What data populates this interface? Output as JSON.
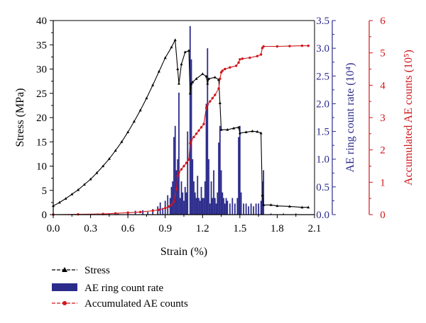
{
  "chart_data": {
    "type": "line",
    "xlabel": "Strain (%)",
    "x_ticks": [
      "0.0",
      "0.3",
      "0.6",
      "0.9",
      "1.2",
      "1.5",
      "1.8",
      "2.1"
    ],
    "xlim": [
      0,
      2.1
    ],
    "axes": {
      "stress": {
        "label": "Stress (MPa)",
        "range": [
          0,
          40
        ],
        "ticks": [
          "0",
          "5",
          "10",
          "15",
          "20",
          "25",
          "30",
          "35",
          "40"
        ],
        "color": "#000000"
      },
      "ae_rate": {
        "label": "AE ring count rate (10⁴)",
        "range": [
          0,
          3.5
        ],
        "ticks": [
          "0.0",
          "0.5",
          "1.0",
          "1.5",
          "2.0",
          "2.5",
          "3.0",
          "3.5"
        ],
        "color": "#2b2b8c"
      },
      "ae_accum": {
        "label": "Accumulated AE counts (10⁵)",
        "range": [
          0,
          6
        ],
        "ticks": [
          "0",
          "1",
          "2",
          "3",
          "4",
          "5",
          "6"
        ],
        "color": "#d0161c"
      }
    },
    "series": [
      {
        "name": "Stress",
        "kind": "line",
        "axis": "stress",
        "marker": "triangle",
        "color": "#000000",
        "points": [
          [
            0.0,
            1.8
          ],
          [
            0.05,
            2.5
          ],
          [
            0.1,
            3.3
          ],
          [
            0.15,
            4.2
          ],
          [
            0.2,
            5.1
          ],
          [
            0.25,
            6.2
          ],
          [
            0.3,
            7.3
          ],
          [
            0.35,
            8.6
          ],
          [
            0.4,
            10.0
          ],
          [
            0.45,
            11.5
          ],
          [
            0.5,
            13.2
          ],
          [
            0.55,
            15.0
          ],
          [
            0.6,
            17.0
          ],
          [
            0.65,
            19.2
          ],
          [
            0.7,
            21.5
          ],
          [
            0.75,
            24.0
          ],
          [
            0.8,
            26.7
          ],
          [
            0.85,
            29.5
          ],
          [
            0.9,
            32.3
          ],
          [
            0.95,
            34.5
          ],
          [
            0.98,
            36.0
          ],
          [
            1.0,
            30.0
          ],
          [
            1.01,
            27.0
          ],
          [
            1.03,
            31.0
          ],
          [
            1.06,
            33.5
          ],
          [
            1.09,
            33.8
          ],
          [
            1.1,
            25.0
          ],
          [
            1.11,
            27.0
          ],
          [
            1.12,
            27.3
          ],
          [
            1.15,
            28.0
          ],
          [
            1.2,
            29.0
          ],
          [
            1.23,
            28.5
          ],
          [
            1.24,
            27.0
          ],
          [
            1.25,
            28.0
          ],
          [
            1.3,
            28.3
          ],
          [
            1.33,
            27.8
          ],
          [
            1.34,
            23.0
          ],
          [
            1.35,
            17.5
          ],
          [
            1.4,
            17.5
          ],
          [
            1.45,
            17.8
          ],
          [
            1.49,
            18.0
          ],
          [
            1.5,
            16.8
          ],
          [
            1.55,
            17.0
          ],
          [
            1.6,
            17.2
          ],
          [
            1.64,
            17.1
          ],
          [
            1.67,
            16.8
          ],
          [
            1.68,
            4.0
          ],
          [
            1.69,
            2.0
          ],
          [
            1.75,
            2.0
          ],
          [
            1.8,
            1.8
          ],
          [
            1.9,
            1.7
          ],
          [
            2.0,
            1.5
          ],
          [
            2.05,
            1.5
          ]
        ]
      },
      {
        "name": "AE ring count rate",
        "kind": "bar",
        "axis": "ae_rate",
        "color": "#2b2b8c",
        "points": [
          [
            0.36,
            0.02
          ],
          [
            0.45,
            0.02
          ],
          [
            0.52,
            0.03
          ],
          [
            0.6,
            0.05
          ],
          [
            0.66,
            0.07
          ],
          [
            0.72,
            0.08
          ],
          [
            0.76,
            0.05
          ],
          [
            0.8,
            0.1
          ],
          [
            0.84,
            0.15
          ],
          [
            0.86,
            0.22
          ],
          [
            0.88,
            0.12
          ],
          [
            0.9,
            0.25
          ],
          [
            0.92,
            0.35
          ],
          [
            0.94,
            0.3
          ],
          [
            0.95,
            0.5
          ],
          [
            0.96,
            0.6
          ],
          [
            0.97,
            1.4
          ],
          [
            0.98,
            1.6
          ],
          [
            0.99,
            0.8
          ],
          [
            1.0,
            1.0
          ],
          [
            1.01,
            2.2
          ],
          [
            1.02,
            0.3
          ],
          [
            1.03,
            0.6
          ],
          [
            1.04,
            0.4
          ],
          [
            1.05,
            0.25
          ],
          [
            1.06,
            0.5
          ],
          [
            1.07,
            0.4
          ],
          [
            1.08,
            1.5
          ],
          [
            1.1,
            3.4
          ],
          [
            1.11,
            2.8
          ],
          [
            1.12,
            1.0
          ],
          [
            1.13,
            0.6
          ],
          [
            1.14,
            0.4
          ],
          [
            1.15,
            0.3
          ],
          [
            1.16,
            0.7
          ],
          [
            1.17,
            0.3
          ],
          [
            1.18,
            0.25
          ],
          [
            1.19,
            0.5
          ],
          [
            1.2,
            0.3
          ],
          [
            1.21,
            0.3
          ],
          [
            1.22,
            0.6
          ],
          [
            1.23,
            2.0
          ],
          [
            1.24,
            3.0
          ],
          [
            1.25,
            1.0
          ],
          [
            1.26,
            0.2
          ],
          [
            1.27,
            0.6
          ],
          [
            1.28,
            0.3
          ],
          [
            1.29,
            0.8
          ],
          [
            1.3,
            0.3
          ],
          [
            1.31,
            0.2
          ],
          [
            1.32,
            0.4
          ],
          [
            1.33,
            1.3
          ],
          [
            1.34,
            1.6
          ],
          [
            1.35,
            0.8
          ],
          [
            1.36,
            0.4
          ],
          [
            1.37,
            0.3
          ],
          [
            1.38,
            0.2
          ],
          [
            1.39,
            0.3
          ],
          [
            1.4,
            0.25
          ],
          [
            1.42,
            0.2
          ],
          [
            1.44,
            0.3
          ],
          [
            1.46,
            0.2
          ],
          [
            1.48,
            0.3
          ],
          [
            1.49,
            1.4
          ],
          [
            1.5,
            1.6
          ],
          [
            1.51,
            0.4
          ],
          [
            1.53,
            0.2
          ],
          [
            1.55,
            0.2
          ],
          [
            1.57,
            0.15
          ],
          [
            1.59,
            0.2
          ],
          [
            1.61,
            0.15
          ],
          [
            1.63,
            0.2
          ],
          [
            1.65,
            0.2
          ],
          [
            1.67,
            0.25
          ],
          [
            1.68,
            0.6
          ],
          [
            1.69,
            0.8
          ],
          [
            1.75,
            0.02
          ],
          [
            1.85,
            0.02
          ],
          [
            1.95,
            0.02
          ]
        ]
      },
      {
        "name": "Accumulated AE counts",
        "kind": "line",
        "axis": "ae_accum",
        "marker": "circle",
        "color": "#d0161c",
        "points": [
          [
            0.0,
            0.0
          ],
          [
            0.2,
            0.01
          ],
          [
            0.4,
            0.02
          ],
          [
            0.5,
            0.04
          ],
          [
            0.6,
            0.06
          ],
          [
            0.7,
            0.08
          ],
          [
            0.8,
            0.12
          ],
          [
            0.85,
            0.15
          ],
          [
            0.9,
            0.2
          ],
          [
            0.93,
            0.25
          ],
          [
            0.95,
            0.3
          ],
          [
            0.97,
            0.4
          ],
          [
            0.99,
            0.8
          ],
          [
            1.0,
            1.2
          ],
          [
            1.01,
            1.3
          ],
          [
            1.03,
            1.4
          ],
          [
            1.05,
            1.5
          ],
          [
            1.07,
            1.6
          ],
          [
            1.09,
            1.7
          ],
          [
            1.1,
            2.2
          ],
          [
            1.11,
            2.3
          ],
          [
            1.13,
            2.4
          ],
          [
            1.15,
            2.5
          ],
          [
            1.17,
            2.6
          ],
          [
            1.19,
            2.7
          ],
          [
            1.21,
            2.8
          ],
          [
            1.23,
            3.3
          ],
          [
            1.24,
            3.4
          ],
          [
            1.26,
            3.5
          ],
          [
            1.28,
            3.6
          ],
          [
            1.3,
            3.7
          ],
          [
            1.33,
            3.9
          ],
          [
            1.34,
            4.2
          ],
          [
            1.35,
            4.4
          ],
          [
            1.36,
            4.45
          ],
          [
            1.38,
            4.5
          ],
          [
            1.42,
            4.55
          ],
          [
            1.47,
            4.6
          ],
          [
            1.49,
            4.7
          ],
          [
            1.5,
            4.8
          ],
          [
            1.52,
            4.82
          ],
          [
            1.58,
            4.85
          ],
          [
            1.64,
            4.9
          ],
          [
            1.67,
            4.95
          ],
          [
            1.68,
            5.15
          ],
          [
            1.69,
            5.2
          ],
          [
            1.8,
            5.2
          ],
          [
            1.9,
            5.21
          ],
          [
            2.0,
            5.22
          ],
          [
            2.05,
            5.22
          ]
        ]
      }
    ],
    "legend": {
      "position": "bottom-left",
      "items": [
        "Stress",
        "AE ring count rate",
        "Accumulated AE counts"
      ]
    }
  }
}
